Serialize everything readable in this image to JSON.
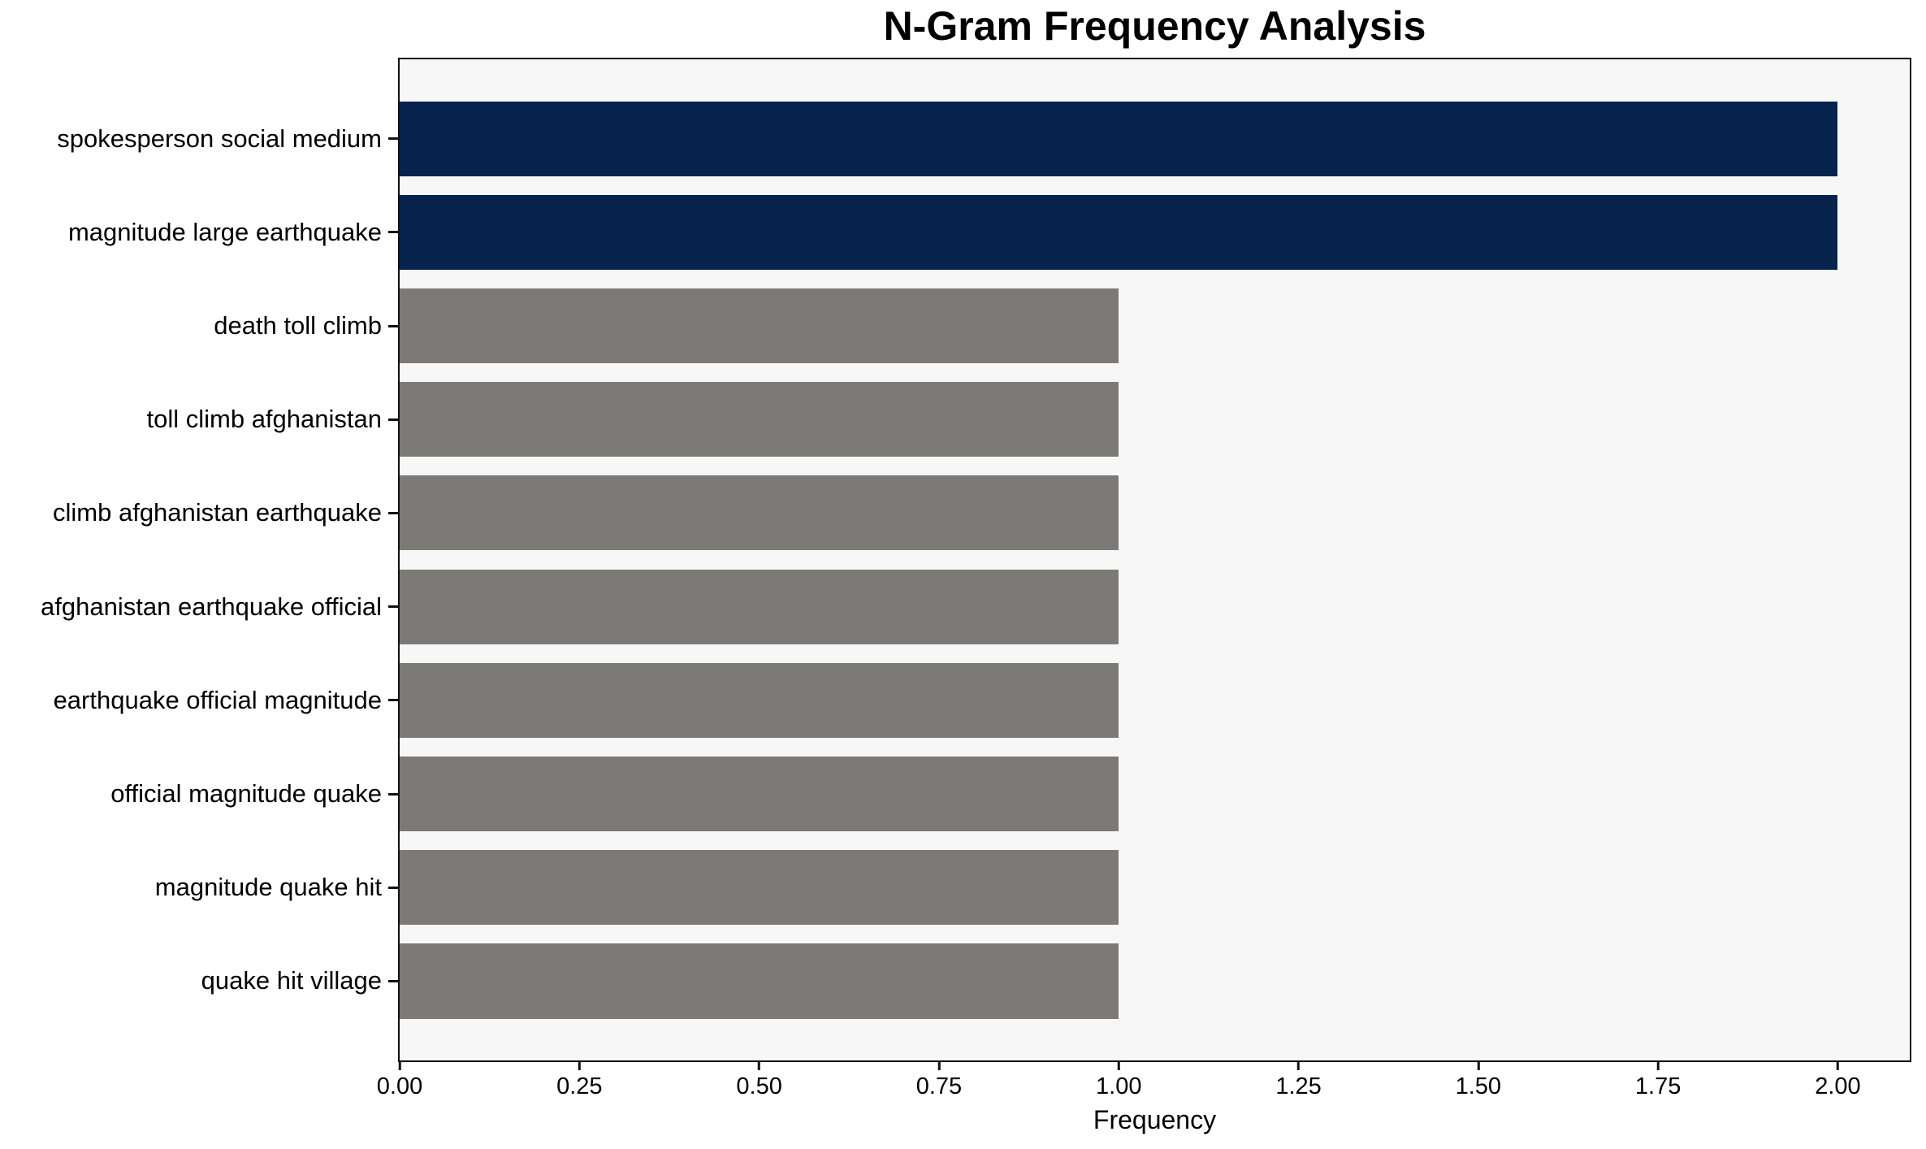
{
  "chart_data": {
    "type": "bar",
    "orientation": "horizontal",
    "title": "N-Gram Frequency Analysis",
    "xlabel": "Frequency",
    "ylabel": "",
    "categories": [
      "spokesperson social medium",
      "magnitude large earthquake",
      "death toll climb",
      "toll climb afghanistan",
      "climb afghanistan earthquake",
      "afghanistan earthquake official",
      "earthquake official magnitude",
      "official magnitude quake",
      "magnitude quake hit",
      "quake hit village"
    ],
    "values": [
      2,
      2,
      1,
      1,
      1,
      1,
      1,
      1,
      1,
      1
    ],
    "bar_colors": [
      "#06234e",
      "#06234e",
      "#7b7a76",
      "#7b7a76",
      "#7b7a76",
      "#7b7a76",
      "#7b7a76",
      "#7b7a76",
      "#7b7a76",
      "#7b7a76"
    ],
    "xlim": [
      0,
      2.1
    ],
    "xtick_values": [
      0,
      0.25,
      0.5,
      0.75,
      1.0,
      1.25,
      1.5,
      1.75,
      2.0
    ],
    "xtick_labels": [
      "0.00",
      "0.25",
      "0.50",
      "0.75",
      "1.00",
      "1.25",
      "1.50",
      "1.75",
      "2.00"
    ],
    "grid": false,
    "legend": false,
    "colors": {
      "highlight_bar": "#06234e",
      "default_bar": "#7b7a76",
      "plot_background": "#f7f7f7",
      "figure_background": "#ffffff",
      "spine": "#111111",
      "text": "#000000"
    }
  }
}
